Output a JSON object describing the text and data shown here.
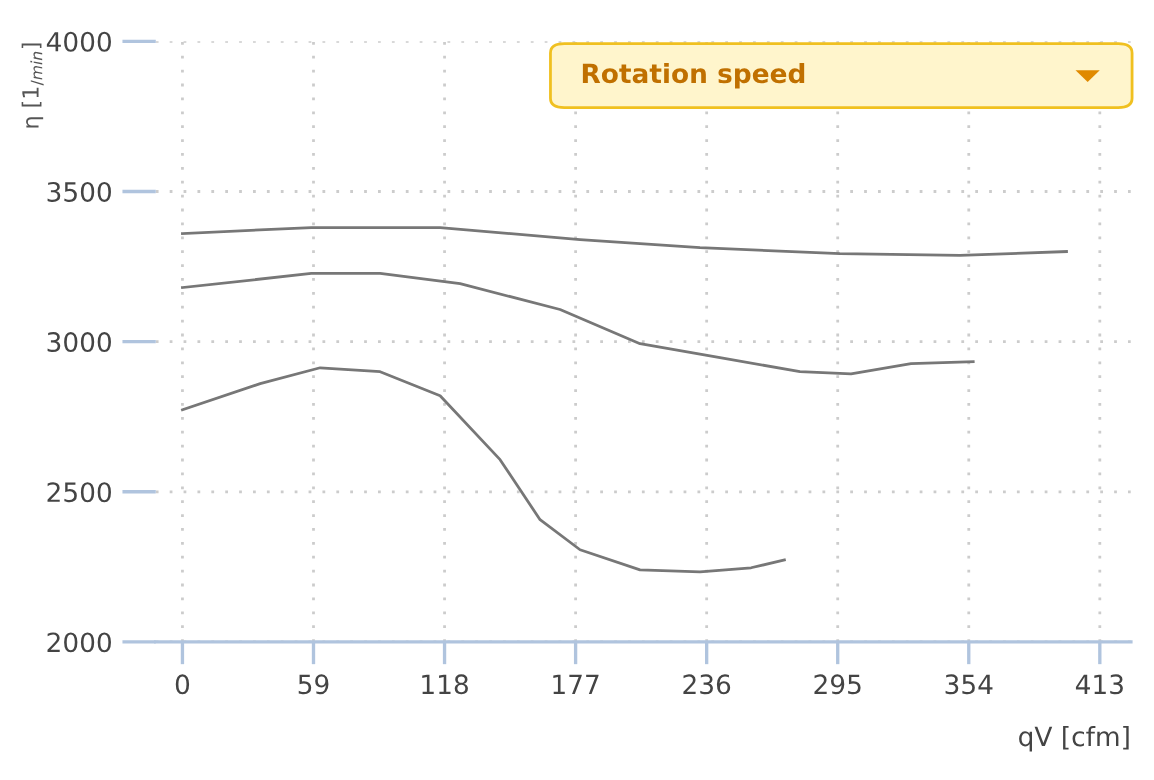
{
  "chart_data": {
    "type": "line",
    "xlabel": "qV [cfm]",
    "ylabel": "η [1$_{/min}$]",
    "annotations": [
      "Rotation speed"
    ],
    "xlim": [
      -12,
      427
    ],
    "ylim": [
      2000,
      4000
    ],
    "xticks": [
      0,
      59,
      118,
      177,
      236,
      295,
      354,
      413
    ],
    "yticks": [
      2000,
      2500,
      3000,
      3500,
      4000
    ],
    "grid": true,
    "marker": "none",
    "line_style": "solid",
    "series": [
      {
        "color": "#777777",
        "x": [
          0,
          58,
          116,
          179,
          233,
          296,
          350,
          398
        ],
        "values": [
          3360,
          3380,
          3380,
          3340,
          3313,
          3293,
          3287,
          3300
        ]
      },
      {
        "color": "#777777",
        "x": [
          0,
          58,
          89,
          125,
          170,
          206,
          242,
          278,
          301,
          328,
          356
        ],
        "values": [
          3180,
          3227,
          3227,
          3193,
          3107,
          2993,
          2947,
          2900,
          2893,
          2927,
          2933
        ]
      },
      {
        "color": "#777777",
        "x": [
          0,
          35,
          62,
          89,
          116,
          143,
          161,
          179,
          206,
          233,
          256,
          271
        ],
        "values": [
          2773,
          2860,
          2913,
          2900,
          2820,
          2607,
          2407,
          2307,
          2240,
          2233,
          2247,
          2273
        ]
      }
    ]
  }
}
